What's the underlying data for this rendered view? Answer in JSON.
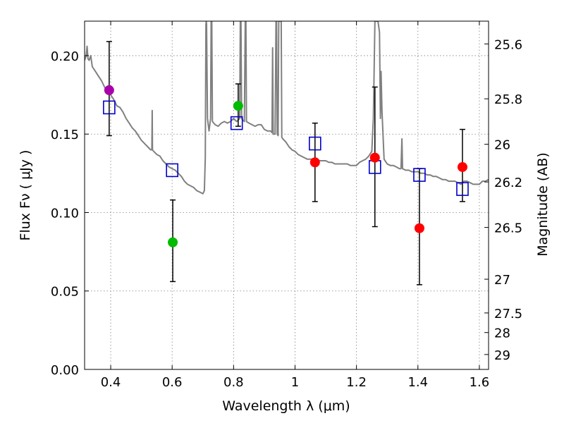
{
  "chart_data": {
    "type": "scatter",
    "xlabel": "Wavelength  λ (μm)",
    "ylabel": "Flux  Fν  ( μJy )",
    "ylabel_right": "Magnitude (AB)",
    "xlim": [
      0.315,
      1.63
    ],
    "ylim": [
      0.0,
      0.222
    ],
    "grid": true,
    "x_ticks": [
      0.4,
      0.6,
      0.8,
      1.0,
      1.2,
      1.4,
      1.6
    ],
    "x_tick_labels": [
      "0.4",
      "0.6",
      "0.8",
      "1",
      "1.2",
      "1.4",
      "1.6"
    ],
    "y_ticks": [
      0.0,
      0.05,
      0.1,
      0.15,
      0.2
    ],
    "y_tick_labels": [
      "0.00",
      "0.05",
      "0.10",
      "0.15",
      "0.20"
    ],
    "mag_ticks": [
      {
        "label": "25.6",
        "flux": 0.2075
      },
      {
        "label": "25.8",
        "flux": 0.1725
      },
      {
        "label": "26",
        "flux": 0.1435
      },
      {
        "label": "26.2",
        "flux": 0.1195
      },
      {
        "label": "26.5",
        "flux": 0.0905
      },
      {
        "label": "27",
        "flux": 0.0575
      },
      {
        "label": "27.5",
        "flux": 0.036
      },
      {
        "label": "28",
        "flux": 0.0235
      },
      {
        "label": "29",
        "flux": 0.0095
      }
    ],
    "observed": [
      {
        "x": 0.395,
        "y": 0.178,
        "err_low": 0.149,
        "err_high": 0.209,
        "color": "#aa00aa"
      },
      {
        "x": 0.602,
        "y": 0.081,
        "err_low": 0.056,
        "err_high": 0.108,
        "color": "#00bb00"
      },
      {
        "x": 0.815,
        "y": 0.168,
        "err_low": 0.155,
        "err_high": 0.182,
        "color": "#00bb00"
      },
      {
        "x": 1.065,
        "y": 0.132,
        "err_low": 0.107,
        "err_high": 0.157,
        "color": "#ff0000"
      },
      {
        "x": 1.26,
        "y": 0.135,
        "err_low": 0.091,
        "err_high": 0.18,
        "color": "#ff0000"
      },
      {
        "x": 1.405,
        "y": 0.09,
        "err_low": 0.054,
        "err_high": 0.128,
        "color": "#ff0000"
      },
      {
        "x": 1.545,
        "y": 0.129,
        "err_low": 0.107,
        "err_high": 0.153,
        "color": "#ff0000"
      }
    ],
    "model_points": [
      {
        "x": 0.395,
        "y": 0.167
      },
      {
        "x": 0.6,
        "y": 0.127
      },
      {
        "x": 0.81,
        "y": 0.157
      },
      {
        "x": 1.065,
        "y": 0.144
      },
      {
        "x": 1.26,
        "y": 0.129
      },
      {
        "x": 1.405,
        "y": 0.124
      },
      {
        "x": 1.545,
        "y": 0.115
      }
    ],
    "spectrum": {
      "color": "#808080",
      "points": [
        [
          0.315,
          0.197
        ],
        [
          0.32,
          0.2
        ],
        [
          0.323,
          0.206
        ],
        [
          0.326,
          0.198
        ],
        [
          0.33,
          0.197
        ],
        [
          0.335,
          0.2
        ],
        [
          0.34,
          0.193
        ],
        [
          0.35,
          0.19
        ],
        [
          0.36,
          0.187
        ],
        [
          0.37,
          0.184
        ],
        [
          0.38,
          0.18
        ],
        [
          0.39,
          0.177
        ],
        [
          0.4,
          0.175
        ],
        [
          0.41,
          0.172
        ],
        [
          0.42,
          0.168
        ],
        [
          0.43,
          0.167
        ],
        [
          0.44,
          0.164
        ],
        [
          0.45,
          0.16
        ],
        [
          0.46,
          0.157
        ],
        [
          0.47,
          0.154
        ],
        [
          0.48,
          0.152
        ],
        [
          0.49,
          0.149
        ],
        [
          0.5,
          0.146
        ],
        [
          0.51,
          0.144
        ],
        [
          0.52,
          0.142
        ],
        [
          0.53,
          0.14
        ],
        [
          0.534,
          0.14
        ],
        [
          0.535,
          0.165
        ],
        [
          0.536,
          0.14
        ],
        [
          0.54,
          0.139
        ],
        [
          0.55,
          0.137
        ],
        [
          0.56,
          0.136
        ],
        [
          0.57,
          0.133
        ],
        [
          0.58,
          0.131
        ],
        [
          0.59,
          0.129
        ],
        [
          0.6,
          0.128
        ],
        [
          0.61,
          0.127
        ],
        [
          0.62,
          0.125
        ],
        [
          0.63,
          0.123
        ],
        [
          0.64,
          0.12
        ],
        [
          0.65,
          0.118
        ],
        [
          0.66,
          0.117
        ],
        [
          0.67,
          0.116
        ],
        [
          0.68,
          0.114
        ],
        [
          0.69,
          0.113
        ],
        [
          0.7,
          0.112
        ],
        [
          0.705,
          0.114
        ],
        [
          0.708,
          0.135
        ],
        [
          0.71,
          0.22
        ],
        [
          0.711,
          0.222
        ],
        [
          0.712,
          0.22
        ],
        [
          0.715,
          0.16
        ],
        [
          0.72,
          0.152
        ],
        [
          0.725,
          0.16
        ],
        [
          0.727,
          0.222
        ],
        [
          0.729,
          0.222
        ],
        [
          0.731,
          0.158
        ],
        [
          0.74,
          0.156
        ],
        [
          0.75,
          0.155
        ],
        [
          0.76,
          0.157
        ],
        [
          0.77,
          0.158
        ],
        [
          0.78,
          0.157
        ],
        [
          0.79,
          0.158
        ],
        [
          0.8,
          0.16
        ],
        [
          0.81,
          0.158
        ],
        [
          0.82,
          0.16
        ],
        [
          0.822,
          0.222
        ],
        [
          0.824,
          0.222
        ],
        [
          0.826,
          0.16
        ],
        [
          0.83,
          0.159
        ],
        [
          0.835,
          0.158
        ],
        [
          0.838,
          0.222
        ],
        [
          0.84,
          0.222
        ],
        [
          0.842,
          0.158
        ],
        [
          0.85,
          0.157
        ],
        [
          0.86,
          0.156
        ],
        [
          0.87,
          0.155
        ],
        [
          0.88,
          0.156
        ],
        [
          0.89,
          0.156
        ],
        [
          0.9,
          0.153
        ],
        [
          0.91,
          0.152
        ],
        [
          0.92,
          0.152
        ],
        [
          0.925,
          0.151
        ],
        [
          0.927,
          0.205
        ],
        [
          0.929,
          0.15
        ],
        [
          0.935,
          0.15
        ],
        [
          0.938,
          0.222
        ],
        [
          0.94,
          0.222
        ],
        [
          0.942,
          0.15
        ],
        [
          0.945,
          0.149
        ],
        [
          0.947,
          0.222
        ],
        [
          0.95,
          0.222
        ],
        [
          0.952,
          0.222
        ],
        [
          0.955,
          0.222
        ],
        [
          0.957,
          0.148
        ],
        [
          0.96,
          0.147
        ],
        [
          0.97,
          0.145
        ],
        [
          0.98,
          0.142
        ],
        [
          0.99,
          0.14
        ],
        [
          1.0,
          0.139
        ],
        [
          1.01,
          0.137
        ],
        [
          1.02,
          0.136
        ],
        [
          1.03,
          0.135
        ],
        [
          1.04,
          0.134
        ],
        [
          1.05,
          0.134
        ],
        [
          1.06,
          0.134
        ],
        [
          1.07,
          0.134
        ],
        [
          1.08,
          0.133
        ],
        [
          1.09,
          0.133
        ],
        [
          1.1,
          0.133
        ],
        [
          1.11,
          0.132
        ],
        [
          1.12,
          0.132
        ],
        [
          1.13,
          0.131
        ],
        [
          1.14,
          0.131
        ],
        [
          1.15,
          0.131
        ],
        [
          1.16,
          0.131
        ],
        [
          1.17,
          0.131
        ],
        [
          1.18,
          0.13
        ],
        [
          1.19,
          0.13
        ],
        [
          1.2,
          0.13
        ],
        [
          1.21,
          0.132
        ],
        [
          1.22,
          0.133
        ],
        [
          1.23,
          0.134
        ],
        [
          1.24,
          0.136
        ],
        [
          1.25,
          0.139
        ],
        [
          1.255,
          0.16
        ],
        [
          1.26,
          0.222
        ],
        [
          1.265,
          0.222
        ],
        [
          1.27,
          0.222
        ],
        [
          1.275,
          0.215
        ],
        [
          1.278,
          0.16
        ],
        [
          1.28,
          0.19
        ],
        [
          1.283,
          0.165
        ],
        [
          1.29,
          0.134
        ],
        [
          1.3,
          0.131
        ],
        [
          1.31,
          0.13
        ],
        [
          1.32,
          0.13
        ],
        [
          1.33,
          0.129
        ],
        [
          1.34,
          0.128
        ],
        [
          1.345,
          0.128
        ],
        [
          1.348,
          0.147
        ],
        [
          1.35,
          0.128
        ],
        [
          1.36,
          0.127
        ],
        [
          1.37,
          0.127
        ],
        [
          1.38,
          0.126
        ],
        [
          1.39,
          0.126
        ],
        [
          1.4,
          0.126
        ],
        [
          1.41,
          0.125
        ],
        [
          1.42,
          0.125
        ],
        [
          1.43,
          0.124
        ],
        [
          1.44,
          0.124
        ],
        [
          1.45,
          0.123
        ],
        [
          1.46,
          0.123
        ],
        [
          1.47,
          0.122
        ],
        [
          1.48,
          0.121
        ],
        [
          1.49,
          0.121
        ],
        [
          1.5,
          0.12
        ],
        [
          1.51,
          0.12
        ],
        [
          1.52,
          0.12
        ],
        [
          1.53,
          0.119
        ],
        [
          1.54,
          0.118
        ],
        [
          1.55,
          0.12
        ],
        [
          1.56,
          0.12
        ],
        [
          1.57,
          0.119
        ],
        [
          1.58,
          0.118
        ],
        [
          1.59,
          0.118
        ],
        [
          1.6,
          0.118
        ],
        [
          1.61,
          0.12
        ],
        [
          1.62,
          0.12
        ],
        [
          1.63,
          0.121
        ]
      ]
    }
  }
}
